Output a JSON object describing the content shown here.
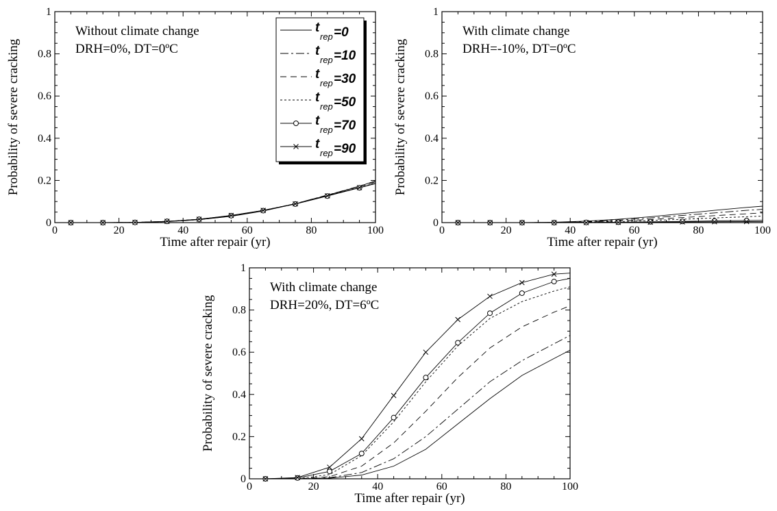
{
  "colors": {
    "line": "#000000",
    "background": "#ffffff"
  },
  "chart_data": [
    {
      "type": "line",
      "xlabel": "Time after repair (yr)",
      "ylabel": "Probability of severe cracking",
      "xlim": [
        0,
        100
      ],
      "ylim": [
        0,
        1
      ],
      "xticks": [
        "0",
        "20",
        "40",
        "60",
        "80",
        "100"
      ],
      "yticks": [
        "0",
        "0.2",
        "0.4",
        "0.6",
        "0.8",
        "1"
      ],
      "annotations": [
        "Without climate change",
        "DRH=0%, DT=0ºC"
      ],
      "legend": {
        "placement": "top-right",
        "symbol": "t",
        "subscript": "rep",
        "entries": [
          "=0",
          "=10",
          "=30",
          "=50",
          "=70",
          "=90"
        ]
      },
      "x": [
        0,
        5,
        15,
        25,
        35,
        45,
        55,
        65,
        75,
        85,
        95,
        100
      ],
      "series": [
        {
          "values": [
            0,
            0,
            0,
            0.001,
            0.005,
            0.014,
            0.03,
            0.055,
            0.089,
            0.13,
            0.172,
            0.198
          ]
        },
        {
          "values": [
            0,
            0,
            0,
            0.001,
            0.005,
            0.014,
            0.031,
            0.056,
            0.09,
            0.131,
            0.173,
            0.197
          ]
        },
        {
          "values": [
            0,
            0,
            0,
            0.001,
            0.006,
            0.015,
            0.032,
            0.057,
            0.09,
            0.13,
            0.171,
            0.193
          ]
        },
        {
          "values": [
            0,
            0,
            0,
            0.001,
            0.006,
            0.016,
            0.033,
            0.058,
            0.09,
            0.128,
            0.167,
            0.188
          ]
        },
        {
          "values": [
            0,
            0,
            0,
            0.001,
            0.006,
            0.016,
            0.033,
            0.057,
            0.088,
            0.126,
            0.165,
            0.185
          ]
        },
        {
          "values": [
            0,
            0,
            0,
            0.001,
            0.006,
            0.016,
            0.034,
            0.058,
            0.089,
            0.127,
            0.166,
            0.186
          ]
        }
      ]
    },
    {
      "type": "line",
      "xlabel": "Time after repair (yr)",
      "ylabel": "Probability of severe cracking",
      "xlim": [
        0,
        100
      ],
      "ylim": [
        0,
        1
      ],
      "xticks": [
        "0",
        "20",
        "40",
        "60",
        "80",
        "100"
      ],
      "yticks": [
        "0",
        "0.2",
        "0.4",
        "0.6",
        "0.8",
        "1"
      ],
      "annotations": [
        "With climate change",
        "DRH=-10%, DT=0ºC"
      ],
      "x": [
        0,
        5,
        15,
        25,
        35,
        45,
        55,
        65,
        75,
        85,
        95,
        100
      ],
      "series": [
        {
          "values": [
            0,
            0,
            0,
            0,
            0.002,
            0.007,
            0.016,
            0.028,
            0.043,
            0.058,
            0.072,
            0.078
          ]
        },
        {
          "values": [
            0,
            0,
            0,
            0,
            0.001,
            0.005,
            0.012,
            0.022,
            0.034,
            0.046,
            0.058,
            0.063
          ]
        },
        {
          "values": [
            0,
            0,
            0,
            0,
            0.001,
            0.003,
            0.008,
            0.015,
            0.024,
            0.033,
            0.042,
            0.046
          ]
        },
        {
          "values": [
            0,
            0,
            0,
            0,
            0,
            0.002,
            0.005,
            0.01,
            0.016,
            0.022,
            0.028,
            0.031
          ]
        },
        {
          "values": [
            0,
            0,
            0,
            0,
            0,
            0.001,
            0.002,
            0.004,
            0.006,
            0.008,
            0.01,
            0.011
          ]
        },
        {
          "values": [
            0,
            0,
            0,
            0,
            0,
            0,
            0.001,
            0.002,
            0.003,
            0.004,
            0.005,
            0.005
          ]
        }
      ]
    },
    {
      "type": "line",
      "xlabel": "Time after repair (yr)",
      "ylabel": "Probability of severe cracking",
      "xlim": [
        0,
        100
      ],
      "ylim": [
        0,
        1
      ],
      "xticks": [
        "0",
        "20",
        "40",
        "60",
        "80",
        "100"
      ],
      "yticks": [
        "0",
        "0.2",
        "0.4",
        "0.6",
        "0.8",
        "1"
      ],
      "annotations": [
        "With climate change",
        "DRH=20%, DT=6ºC"
      ],
      "x": [
        0,
        5,
        15,
        25,
        35,
        45,
        55,
        65,
        75,
        85,
        95,
        100
      ],
      "series": [
        {
          "values": [
            0,
            0,
            0,
            0.003,
            0.018,
            0.06,
            0.14,
            0.26,
            0.38,
            0.49,
            0.57,
            0.61
          ]
        },
        {
          "values": [
            0,
            0,
            0,
            0.005,
            0.03,
            0.095,
            0.2,
            0.33,
            0.46,
            0.56,
            0.64,
            0.68
          ]
        },
        {
          "values": [
            0,
            0,
            0,
            0.01,
            0.06,
            0.17,
            0.32,
            0.48,
            0.62,
            0.72,
            0.79,
            0.82
          ]
        },
        {
          "values": [
            0,
            0,
            0,
            0.02,
            0.11,
            0.27,
            0.46,
            0.63,
            0.76,
            0.84,
            0.89,
            0.91
          ]
        },
        {
          "values": [
            0,
            0,
            0.004,
            0.035,
            0.12,
            0.29,
            0.48,
            0.645,
            0.785,
            0.88,
            0.935,
            0.95
          ]
        },
        {
          "values": [
            0,
            0,
            0.006,
            0.055,
            0.19,
            0.395,
            0.6,
            0.755,
            0.865,
            0.93,
            0.97,
            0.975
          ]
        }
      ]
    }
  ]
}
